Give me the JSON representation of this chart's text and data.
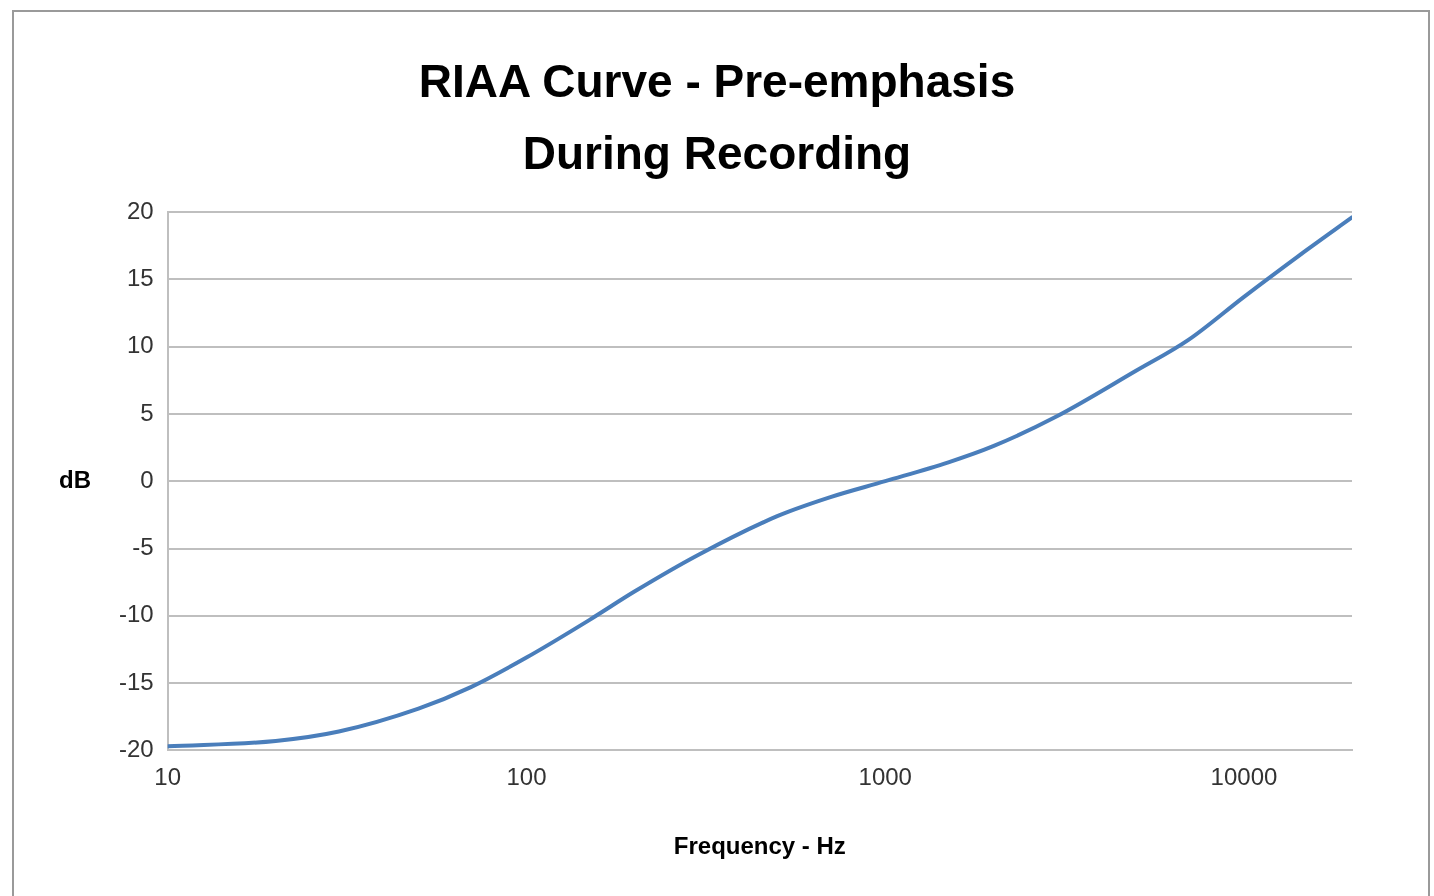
{
  "chart_data": {
    "type": "line",
    "title": "RIAA Curve - Pre-emphasis During Recording",
    "xlabel": "Frequency - Hz",
    "ylabel": "dB",
    "x": [
      10,
      20,
      30,
      50,
      70,
      100,
      150,
      200,
      300,
      500,
      700,
      1000,
      1500,
      2000,
      3000,
      5000,
      7000,
      10000,
      15000,
      20000
    ],
    "series": [
      {
        "color": "#4a7ebb",
        "values": [
          -19.7,
          -19.3,
          -18.6,
          -16.9,
          -15.3,
          -13.1,
          -10.3,
          -8.2,
          -5.5,
          -2.6,
          -1.2,
          0,
          1.4,
          2.6,
          4.8,
          8.2,
          10.5,
          13.7,
          17.2,
          19.6
        ]
      }
    ],
    "log": "x",
    "xlim": [
      10,
      20000
    ],
    "xticks": [
      10,
      100,
      1000,
      10000
    ],
    "ylim": [
      -20,
      20
    ],
    "yticks": [
      -20,
      -15,
      -10,
      -5,
      0,
      5,
      10,
      15,
      20
    ],
    "grid": "y",
    "legend": false,
    "marker": "none",
    "line_style": "solid"
  }
}
